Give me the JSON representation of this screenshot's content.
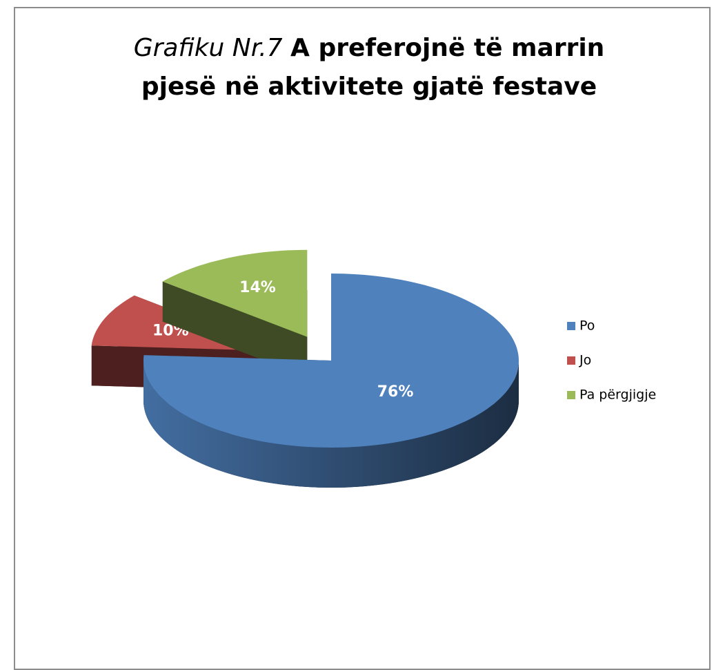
{
  "chart_data": {
    "type": "pie3d",
    "title": {
      "italic": "Grafiku Nr.7",
      "bold": "A preferojnë të marrin pjesë në aktivitete gjatë festave"
    },
    "categories": [
      "Po",
      "Jo",
      "Pa përgjigje"
    ],
    "values": [
      76,
      10,
      14
    ],
    "value_labels": [
      "76%",
      "10%",
      "14%"
    ],
    "colors": [
      "#4f81bd",
      "#c0504d",
      "#9bbb59"
    ],
    "exploded": [
      false,
      true,
      true
    ],
    "legend": "right"
  }
}
